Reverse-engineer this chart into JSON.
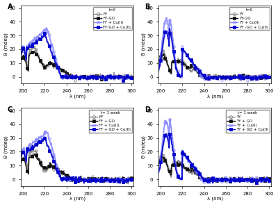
{
  "title": "",
  "panels": [
    "A",
    "B",
    "C",
    "D"
  ],
  "xlim": [
    198,
    302
  ],
  "ylim": [
    -5,
    52
  ],
  "xlabel": "λ (nm)",
  "ylabel": "Θ (mdeg)",
  "xticks": [
    200,
    220,
    240,
    260,
    280,
    300
  ],
  "yticks": [
    0,
    10,
    20,
    30,
    40,
    50
  ],
  "panel_A": {
    "label": "A",
    "legend_title": "t=0",
    "series": [
      {
        "name": "FF",
        "color": "#888888",
        "marker": "o",
        "filled": false,
        "lw": 1.2
      },
      {
        "name": "FF-GO",
        "color": "#111111",
        "marker": "s",
        "filled": true,
        "lw": 1.2
      },
      {
        "name": "FF + Cu(II)",
        "color": "#8888ff",
        "marker": "o",
        "filled": false,
        "lw": 1.5
      },
      {
        "name": "FF-GO + Cu(II)",
        "color": "#0000cc",
        "marker": "s",
        "filled": true,
        "lw": 1.5
      }
    ]
  },
  "panel_B": {
    "label": "B",
    "legend_title": "t=0",
    "series": [
      {
        "name": "YY",
        "color": "#888888",
        "marker": "o",
        "filled": false,
        "lw": 1.2
      },
      {
        "name": "YY-GO",
        "color": "#111111",
        "marker": "s",
        "filled": true,
        "lw": 1.2
      },
      {
        "name": "YY + Cu(II)",
        "color": "#8888ff",
        "marker": "o",
        "filled": false,
        "lw": 1.5
      },
      {
        "name": "YY -GO + Cu(II)",
        "color": "#0000cc",
        "marker": "s",
        "filled": true,
        "lw": 1.5
      }
    ]
  },
  "panel_C": {
    "label": "C",
    "legend_title": "t= 1 week",
    "series": [
      {
        "name": "FF",
        "color": "#888888",
        "marker": "o",
        "filled": false,
        "lw": 1.2
      },
      {
        "name": "FF + GO",
        "color": "#111111",
        "marker": "s",
        "filled": true,
        "lw": 1.2
      },
      {
        "name": "FF + Cu(II)",
        "color": "#8888ff",
        "marker": "o",
        "filled": false,
        "lw": 1.5
      },
      {
        "name": "FF + GO + Cu(II)",
        "color": "#0000cc",
        "marker": "s",
        "filled": true,
        "lw": 1.5
      }
    ]
  },
  "panel_D": {
    "label": "D",
    "legend_title": "t= 1 week",
    "series": [
      {
        "name": "YY",
        "color": "#888888",
        "marker": "o",
        "filled": false,
        "lw": 1.2
      },
      {
        "name": "YY + GO",
        "color": "#111111",
        "marker": "s",
        "filled": true,
        "lw": 1.2
      },
      {
        "name": "YY + Cu(II)",
        "color": "#8888ff",
        "marker": "o",
        "filled": false,
        "lw": 1.5
      },
      {
        "name": "YY + GO + Cu(II)",
        "color": "#0000cc",
        "marker": "s",
        "filled": true,
        "lw": 1.5
      }
    ]
  }
}
